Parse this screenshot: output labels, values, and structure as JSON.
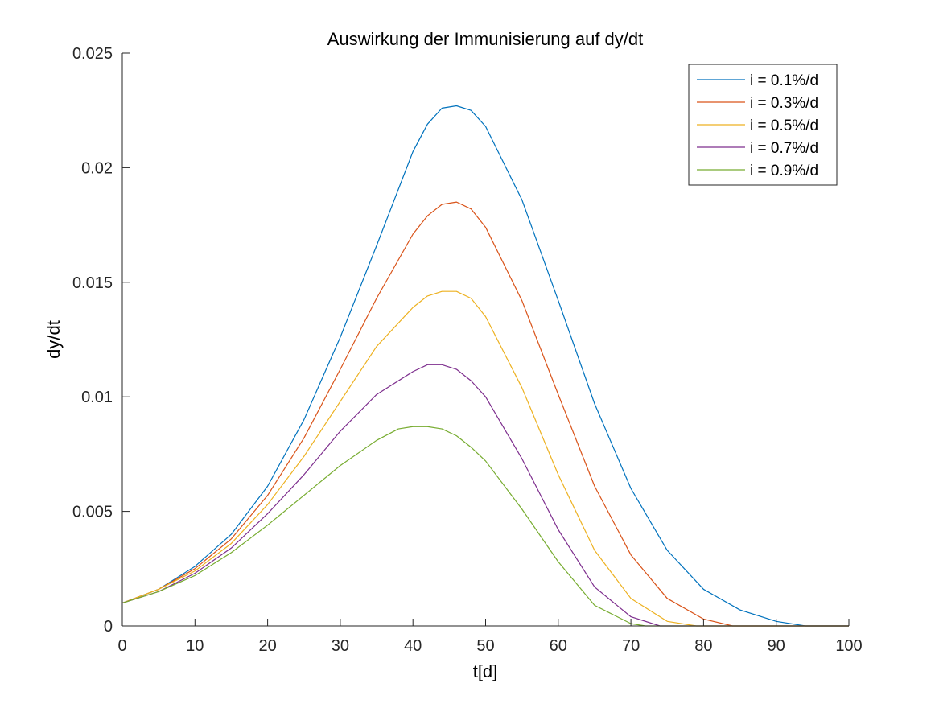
{
  "chart_data": {
    "type": "line",
    "title": "Auswirkung der Immunisierung auf dy/dt",
    "xlabel": "t[d]",
    "ylabel": "dy/dt",
    "xlim": [
      0,
      100
    ],
    "ylim": [
      0,
      0.025
    ],
    "x_ticks": [
      0,
      10,
      20,
      30,
      40,
      50,
      60,
      70,
      80,
      90,
      100
    ],
    "x_tick_labels": [
      "0",
      "10",
      "20",
      "30",
      "40",
      "50",
      "60",
      "70",
      "80",
      "90",
      "100"
    ],
    "y_ticks": [
      0,
      0.005,
      0.01,
      0.015,
      0.02,
      0.025
    ],
    "y_tick_labels": [
      "0",
      "0.005",
      "0.01",
      "0.015",
      "0.02",
      "0.025"
    ],
    "grid": false,
    "legend_position": "top-right",
    "series": [
      {
        "name": "i = 0.1%/d",
        "color": "#0072BD",
        "x": [
          0,
          5,
          10,
          15,
          20,
          25,
          30,
          35,
          40,
          42,
          44,
          46,
          48,
          50,
          55,
          60,
          65,
          70,
          75,
          80,
          85,
          90,
          94,
          100
        ],
        "y": [
          0.001,
          0.0016,
          0.0026,
          0.004,
          0.0061,
          0.009,
          0.0126,
          0.0166,
          0.0207,
          0.0219,
          0.0226,
          0.0227,
          0.0225,
          0.0218,
          0.0186,
          0.0142,
          0.0097,
          0.006,
          0.0033,
          0.0016,
          0.0007,
          0.0002,
          0.0,
          0.0
        ]
      },
      {
        "name": "i = 0.3%/d",
        "color": "#D95319",
        "x": [
          0,
          5,
          10,
          15,
          20,
          25,
          30,
          35,
          40,
          42,
          44,
          46,
          48,
          50,
          55,
          60,
          65,
          70,
          75,
          80,
          84,
          85,
          100
        ],
        "y": [
          0.001,
          0.0016,
          0.0025,
          0.0038,
          0.0057,
          0.0082,
          0.0112,
          0.0143,
          0.0171,
          0.0179,
          0.0184,
          0.0185,
          0.0182,
          0.0174,
          0.0142,
          0.0101,
          0.0061,
          0.0031,
          0.0012,
          0.0003,
          0.0,
          0.0,
          0.0
        ]
      },
      {
        "name": "i = 0.5%/d",
        "color": "#EDB120",
        "x": [
          0,
          5,
          10,
          15,
          20,
          25,
          30,
          35,
          40,
          42,
          44,
          46,
          48,
          50,
          55,
          60,
          65,
          70,
          75,
          79,
          80,
          100
        ],
        "y": [
          0.001,
          0.0016,
          0.0024,
          0.0036,
          0.0053,
          0.0074,
          0.0098,
          0.0122,
          0.0139,
          0.0144,
          0.0146,
          0.0146,
          0.0143,
          0.0135,
          0.0104,
          0.0066,
          0.0033,
          0.0012,
          0.0002,
          0.0,
          0.0,
          0.0
        ]
      },
      {
        "name": "i = 0.7%/d",
        "color": "#7E2F8E",
        "x": [
          0,
          5,
          10,
          15,
          20,
          25,
          30,
          35,
          40,
          42,
          44,
          46,
          48,
          50,
          55,
          60,
          65,
          70,
          74,
          76,
          100
        ],
        "y": [
          0.001,
          0.0015,
          0.0023,
          0.0034,
          0.0049,
          0.0066,
          0.0085,
          0.0101,
          0.0111,
          0.0114,
          0.0114,
          0.0112,
          0.0107,
          0.01,
          0.0073,
          0.0042,
          0.0017,
          0.0004,
          0.0,
          0.0,
          0.0
        ]
      },
      {
        "name": "i = 0.9%/d",
        "color": "#77AC30",
        "x": [
          0,
          5,
          10,
          15,
          20,
          25,
          30,
          35,
          38,
          40,
          42,
          44,
          46,
          48,
          50,
          55,
          60,
          65,
          70,
          72,
          100
        ],
        "y": [
          0.001,
          0.0015,
          0.0022,
          0.0032,
          0.0044,
          0.0057,
          0.007,
          0.0081,
          0.0086,
          0.0087,
          0.0087,
          0.0086,
          0.0083,
          0.0078,
          0.0072,
          0.0051,
          0.0028,
          0.0009,
          0.0001,
          0.0,
          0.0
        ]
      }
    ]
  }
}
